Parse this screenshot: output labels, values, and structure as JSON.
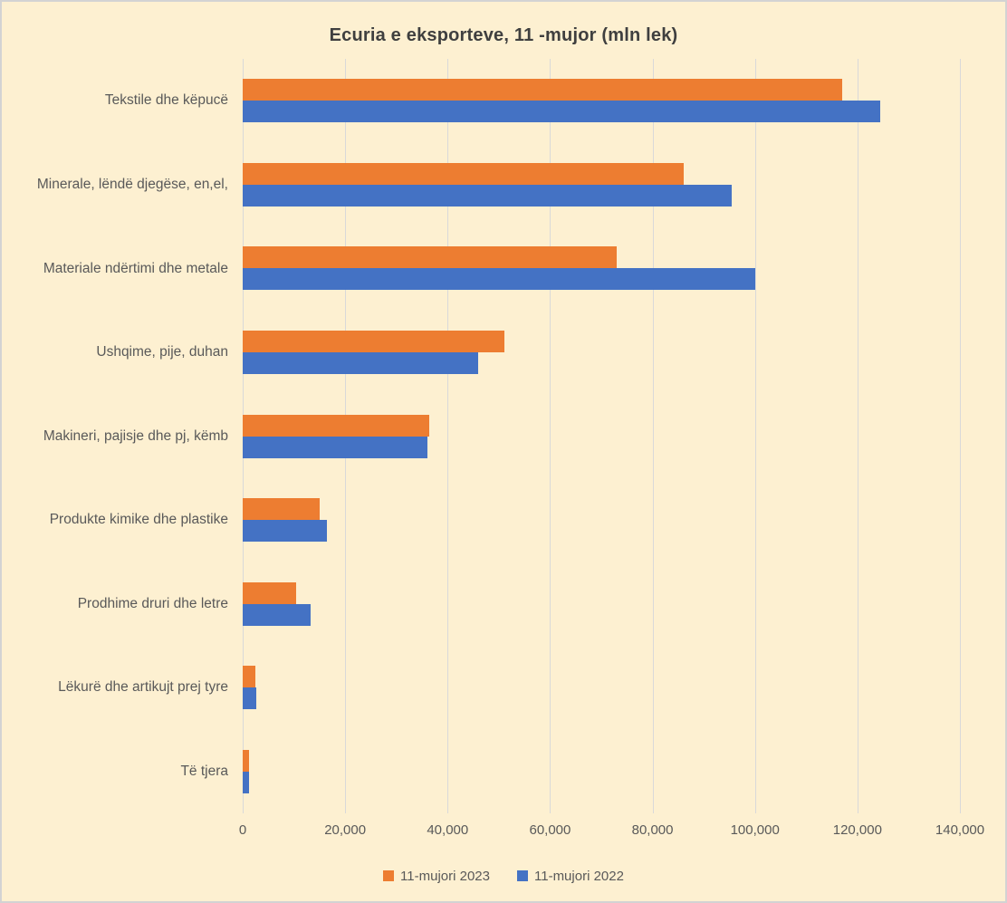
{
  "title": "Ecuria e eksporteve, 11 -mujor (mln lek)",
  "colors": {
    "background": "#FDF0D1",
    "border": "#D3D3D3",
    "gridline": "#D9D9D9",
    "axis_text": "#595959",
    "title_text": "#3F3F3F",
    "series_2023": "#ED7D31",
    "series_2022": "#4472C4"
  },
  "chart_data": {
    "type": "bar",
    "orientation": "horizontal",
    "title": "Ecuria e eksporteve, 11 -mujor (mln lek)",
    "categories": [
      "Tekstile dhe këpucë",
      "Minerale, lëndë djegëse, en,el,",
      "Materiale ndërtimi dhe metale",
      "Ushqime, pije, duhan",
      "Makineri, pajisje dhe pj, këmb",
      "Produkte kimike dhe plastike",
      "Prodhime druri dhe letre",
      "Lëkurë dhe artikujt prej tyre",
      "Të tjera"
    ],
    "series": [
      {
        "name": "11-mujori 2023",
        "color": "#ED7D31",
        "values": [
          117000,
          86000,
          73000,
          51000,
          36500,
          15000,
          10500,
          2500,
          1300
        ]
      },
      {
        "name": "11-mujori 2022",
        "color": "#4472C4",
        "values": [
          124500,
          95500,
          100000,
          46000,
          36000,
          16500,
          13200,
          2700,
          1200
        ]
      }
    ],
    "xlim": [
      0,
      140000
    ],
    "xticks": [
      {
        "value": 0,
        "label": "0"
      },
      {
        "value": 20000,
        "label": "20,000"
      },
      {
        "value": 40000,
        "label": "40,000"
      },
      {
        "value": 60000,
        "label": "60,000"
      },
      {
        "value": 80000,
        "label": "80,000"
      },
      {
        "value": 100000,
        "label": "100,000"
      },
      {
        "value": 120000,
        "label": "120,000"
      },
      {
        "value": 140000,
        "label": "140,000"
      }
    ],
    "grid": "vertical",
    "legend_position": "bottom"
  },
  "legend": {
    "items": [
      {
        "label": "11-mujori 2023",
        "color": "#ED7D31"
      },
      {
        "label": "11-mujori 2022",
        "color": "#4472C4"
      }
    ]
  }
}
